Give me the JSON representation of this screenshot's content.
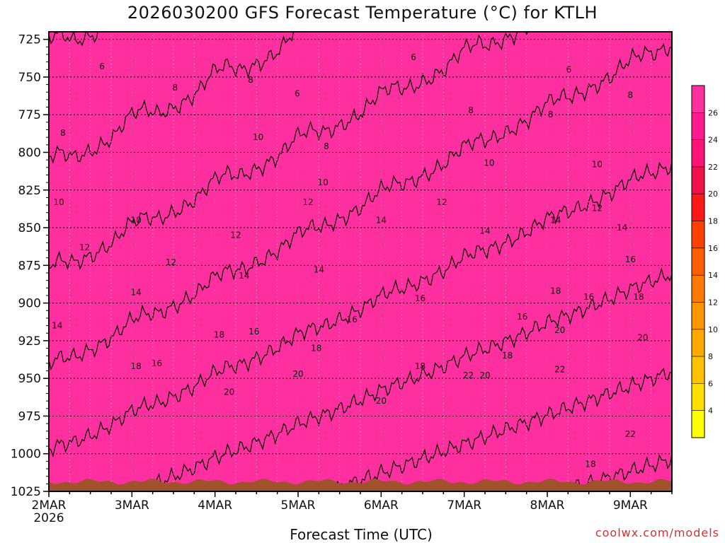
{
  "chart_data": {
    "type": "heatmap",
    "title": "2026030200 GFS Forecast Temperature (°C) for KTLH",
    "xlabel": "Forecast Time (UTC)",
    "ylabel": "",
    "credit": "coolwx.com/models",
    "x_ticks": [
      {
        "label": "2MAR",
        "sub": "2026",
        "day": 0
      },
      {
        "label": "3MAR",
        "sub": "",
        "day": 1
      },
      {
        "label": "4MAR",
        "sub": "",
        "day": 2
      },
      {
        "label": "5MAR",
        "sub": "",
        "day": 3
      },
      {
        "label": "6MAR",
        "sub": "",
        "day": 4
      },
      {
        "label": "7MAR",
        "sub": "",
        "day": 5
      },
      {
        "label": "8MAR",
        "sub": "",
        "day": 6
      },
      {
        "label": "9MAR",
        "sub": "",
        "day": 7
      }
    ],
    "xlim": [
      0,
      7.5
    ],
    "y_ticks": [
      725,
      750,
      775,
      800,
      825,
      850,
      875,
      900,
      925,
      950,
      975,
      1000,
      1025
    ],
    "ylim": [
      720,
      1025
    ],
    "colorbar_levels": [
      4,
      6,
      8,
      10,
      12,
      14,
      16,
      18,
      20,
      22,
      24,
      26
    ],
    "colorbar_colors": [
      "#ffff00",
      "#ffe000",
      "#ffc200",
      "#ffa800",
      "#ff9400",
      "#ff7a00",
      "#ff5e00",
      "#ff4000",
      "#ff1818",
      "#f0104a",
      "#ff1377",
      "#ff1a90",
      "#ff2fa0"
    ],
    "contour_labels": [
      {
        "text": "6",
        "day": 0.64,
        "p": 743
      },
      {
        "text": "6",
        "day": 4.39,
        "p": 737
      },
      {
        "text": "6",
        "day": 2.99,
        "p": 761
      },
      {
        "text": "6",
        "day": 6.26,
        "p": 745
      },
      {
        "text": "8",
        "day": 0.17,
        "p": 787
      },
      {
        "text": "8",
        "day": 1.52,
        "p": 757
      },
      {
        "text": "8",
        "day": 2.43,
        "p": 752
      },
      {
        "text": "8",
        "day": 3.34,
        "p": 796
      },
      {
        "text": "8",
        "day": 5.08,
        "p": 772
      },
      {
        "text": "8",
        "day": 6.04,
        "p": 775
      },
      {
        "text": "8",
        "day": 7.0,
        "p": 762
      },
      {
        "text": "10",
        "day": 0.12,
        "p": 833
      },
      {
        "text": "10",
        "day": 2.52,
        "p": 790
      },
      {
        "text": "10",
        "day": 1.05,
        "p": 845
      },
      {
        "text": "10",
        "day": 3.3,
        "p": 820
      },
      {
        "text": "10",
        "day": 5.3,
        "p": 807
      },
      {
        "text": "10",
        "day": 6.6,
        "p": 808
      },
      {
        "text": "12",
        "day": 0.43,
        "p": 863
      },
      {
        "text": "12",
        "day": 1.47,
        "p": 873
      },
      {
        "text": "12",
        "day": 2.25,
        "p": 855
      },
      {
        "text": "12",
        "day": 3.12,
        "p": 833
      },
      {
        "text": "12",
        "day": 4.73,
        "p": 833
      },
      {
        "text": "12",
        "day": 6.6,
        "p": 837
      },
      {
        "text": "14",
        "day": 0.1,
        "p": 915
      },
      {
        "text": "14",
        "day": 1.05,
        "p": 893
      },
      {
        "text": "14",
        "day": 2.35,
        "p": 882
      },
      {
        "text": "14",
        "day": 3.25,
        "p": 878
      },
      {
        "text": "14",
        "day": 4.0,
        "p": 845
      },
      {
        "text": "14",
        "day": 5.25,
        "p": 852
      },
      {
        "text": "14",
        "day": 6.1,
        "p": 845
      },
      {
        "text": "14",
        "day": 6.9,
        "p": 850
      },
      {
        "text": "16",
        "day": 1.3,
        "p": 940
      },
      {
        "text": "16",
        "day": 2.47,
        "p": 919
      },
      {
        "text": "16",
        "day": 3.65,
        "p": 911
      },
      {
        "text": "16",
        "day": 4.47,
        "p": 897
      },
      {
        "text": "16",
        "day": 5.7,
        "p": 909
      },
      {
        "text": "16",
        "day": 6.5,
        "p": 896
      },
      {
        "text": "16",
        "day": 7.0,
        "p": 871
      },
      {
        "text": "18",
        "day": 1.05,
        "p": 942
      },
      {
        "text": "18",
        "day": 2.05,
        "p": 921
      },
      {
        "text": "18",
        "day": 3.22,
        "p": 930
      },
      {
        "text": "18",
        "day": 4.47,
        "p": 942
      },
      {
        "text": "18",
        "day": 5.52,
        "p": 935
      },
      {
        "text": "18",
        "day": 6.1,
        "p": 892
      },
      {
        "text": "18",
        "day": 6.52,
        "p": 1007
      },
      {
        "text": "18",
        "day": 7.1,
        "p": 896
      },
      {
        "text": "20",
        "day": 2.17,
        "p": 959
      },
      {
        "text": "20",
        "day": 3.0,
        "p": 947
      },
      {
        "text": "20",
        "day": 4.0,
        "p": 965
      },
      {
        "text": "20",
        "day": 5.25,
        "p": 948
      },
      {
        "text": "20",
        "day": 6.15,
        "p": 918
      },
      {
        "text": "20",
        "day": 7.15,
        "p": 923
      },
      {
        "text": "22",
        "day": 5.05,
        "p": 948
      },
      {
        "text": "22",
        "day": 6.15,
        "p": 944
      },
      {
        "text": "22",
        "day": 7.0,
        "p": 987
      }
    ]
  }
}
